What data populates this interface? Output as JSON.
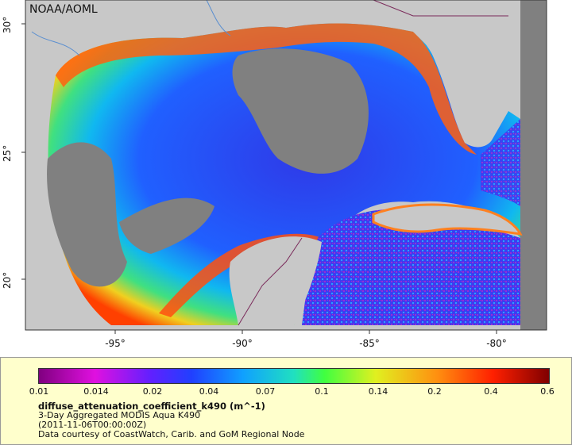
{
  "map": {
    "credit": "NOAA/AOML",
    "x_ticks": [
      "-95°",
      "-90°",
      "-85°",
      "-80°"
    ],
    "y_ticks": [
      "30°",
      "25°",
      "20°"
    ],
    "colors": {
      "land": "#c8c8c8",
      "no_data": "#808080",
      "border": "#7a2a5a",
      "river": "#5b8fd0"
    }
  },
  "legend": {
    "colorbar_labels": [
      "0.01",
      "0.014",
      "0.02",
      "0.04",
      "0.07",
      "0.1",
      "0.14",
      "0.2",
      "0.4",
      "0.6"
    ],
    "variable": "diffuse_attenuation_coefficient_k490 (m^-1)",
    "description": "3-Day Aggregated MODIS Aqua K490",
    "date": "(2011-11-06T00:00:00Z)",
    "source": "Data courtesy of CoastWatch, Carib. and GoM Regional Node"
  }
}
